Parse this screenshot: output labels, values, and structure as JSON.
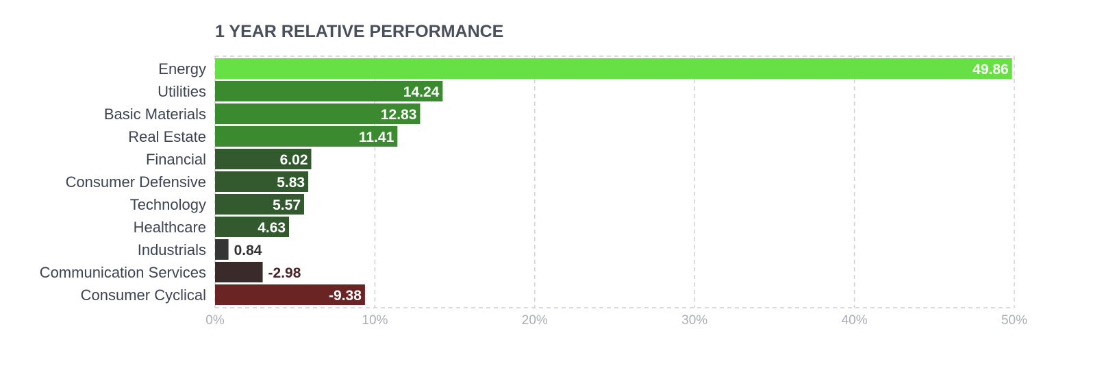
{
  "chart_data": {
    "type": "bar",
    "orientation": "horizontal",
    "title": "1 YEAR RELATIVE PERFORMANCE",
    "categories": [
      "Energy",
      "Utilities",
      "Basic Materials",
      "Real Estate",
      "Financial",
      "Consumer Defensive",
      "Technology",
      "Healthcare",
      "Industrials",
      "Communication Services",
      "Consumer Cyclical"
    ],
    "values": [
      49.86,
      14.24,
      12.83,
      11.41,
      6.02,
      5.83,
      5.57,
      4.63,
      0.84,
      -2.98,
      -9.38
    ],
    "value_labels": [
      "49.86",
      "14.24",
      "12.83",
      "11.41",
      "6.02",
      "5.83",
      "5.57",
      "4.63",
      "0.84",
      "-2.98",
      "-9.38"
    ],
    "bar_colors": [
      "#66e044",
      "#3c8a30",
      "#3c8a30",
      "#3c8a30",
      "#325a2e",
      "#325a2e",
      "#325a2e",
      "#325a2e",
      "#353535",
      "#3b2a2a",
      "#6b2424"
    ],
    "xlim": [
      0,
      50
    ],
    "xticks": [
      "0%",
      "10%",
      "20%",
      "30%",
      "40%",
      "50%"
    ],
    "xlabel": "",
    "ylabel": "",
    "grid": true,
    "legend": "none"
  }
}
